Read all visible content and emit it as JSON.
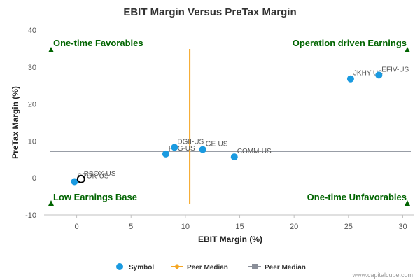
{
  "chart_data": {
    "type": "scatter",
    "title": "EBIT Margin Versus PreTax Margin",
    "xlabel": "EBIT Margin (%)",
    "ylabel": "PreTax Margin (%)",
    "xlim": [
      -3,
      31
    ],
    "ylim": [
      -10,
      40
    ],
    "xticks": [
      0,
      5,
      10,
      15,
      20,
      25,
      30
    ],
    "yticks": [
      -10,
      0,
      10,
      20,
      30,
      40
    ],
    "grid": false,
    "legend_position": "bottom",
    "points": [
      {
        "label": "SPOK-US",
        "x": -0.2,
        "y": -1.0
      },
      {
        "label": "RBOX-US",
        "x": 0.4,
        "y": -0.3,
        "highlight": true
      },
      {
        "label": "PTG-US",
        "x": 8.2,
        "y": 6.5
      },
      {
        "label": "DGII-US",
        "x": 9.0,
        "y": 8.3
      },
      {
        "label": "GE-US",
        "x": 11.6,
        "y": 7.7
      },
      {
        "label": "COMM-US",
        "x": 14.5,
        "y": 5.7
      },
      {
        "label": "JKHY-US",
        "x": 25.2,
        "y": 26.8
      },
      {
        "label": "EFIV-US",
        "x": 27.8,
        "y": 27.8
      }
    ],
    "peer_median_x": 10.4,
    "peer_median_y": 7.2,
    "quadrants": {
      "top_left": "One-time Favorables",
      "top_right": "Operation driven Earnings",
      "bottom_left": "Low Earnings Base",
      "bottom_right": "One-time Unfavorables"
    },
    "legend": [
      "Symbol",
      "Peer Median",
      "Peer Median"
    ],
    "colors": {
      "point": "#1a9ae0",
      "highlight_fill": "#ffffff",
      "highlight_stroke": "#000000",
      "x_median": "#f5a623",
      "y_median": "#8a8f99",
      "quadrant_text": "#006400",
      "triangle": "#006400",
      "axis": "#c0c0c0"
    }
  },
  "credit": "www.capitalcube.com"
}
